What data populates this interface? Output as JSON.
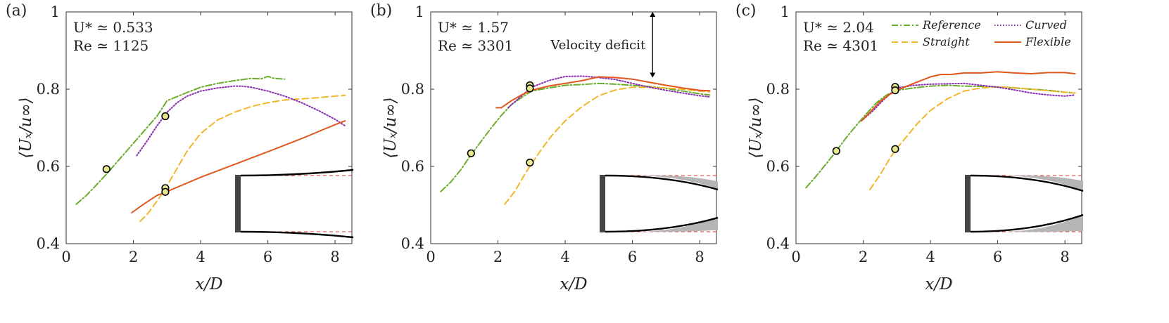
{
  "chart_data": {
    "type": "line",
    "xlabel": "x/D",
    "ylabel": "⟨Uₓ/u∞⟩",
    "xlim": [
      0,
      8.5
    ],
    "ylim": [
      0.4,
      1.0
    ],
    "xticks": [
      "0",
      "2",
      "4",
      "6",
      "8"
    ],
    "yticks": [
      "0.4",
      "0.6",
      "0.8",
      "1"
    ],
    "legend": {
      "placement": "top-right of panel (c)",
      "entries": [
        "Reference",
        "Straight",
        "Curved",
        "Flexible"
      ]
    },
    "colors": {
      "Reference": "#6aad2c",
      "Straight": "#f2b62c",
      "Curved": "#8a2fb0",
      "Flexible": "#e0571e",
      "marker_fill": "#e8e890",
      "inset_dash": "#e53030",
      "envelope": "#b5b5b5"
    },
    "annotation": {
      "panel": 1,
      "text": "Velocity deficit",
      "x": 6.6,
      "y_from": 0.83,
      "y_to": 1.0
    },
    "panels": [
      {
        "label": "(a)",
        "params": {
          "u": "U* ≃ 0.533",
          "re": "Re ≃ 1125"
        },
        "series": [
          {
            "name": "Reference",
            "x": [
              0.3,
              0.6,
              0.9,
              1.2,
              1.5,
              1.8,
              2.1,
              2.4,
              2.7,
              3.0,
              3.5,
              4.0,
              4.5,
              5.0,
              5.5,
              5.8,
              6.0,
              6.2,
              6.5
            ],
            "y": [
              0.502,
              0.525,
              0.552,
              0.58,
              0.61,
              0.64,
              0.67,
              0.7,
              0.73,
              0.77,
              0.788,
              0.805,
              0.815,
              0.822,
              0.828,
              0.827,
              0.833,
              0.828,
              0.826
            ]
          },
          {
            "name": "Straight",
            "x": [
              2.2,
              2.4,
              2.6,
              2.8,
              3.0,
              3.3,
              3.6,
              4.0,
              4.5,
              5.0,
              5.5,
              6.0,
              6.5,
              7.0,
              7.5,
              8.0,
              8.3
            ],
            "y": [
              0.458,
              0.475,
              0.498,
              0.522,
              0.55,
              0.595,
              0.64,
              0.685,
              0.72,
              0.74,
              0.755,
              0.765,
              0.772,
              0.775,
              0.778,
              0.782,
              0.784
            ]
          },
          {
            "name": "Curved",
            "x": [
              2.1,
              2.4,
              2.7,
              3.0,
              3.3,
              3.6,
              4.0,
              4.5,
              5.0,
              5.2,
              5.5,
              6.0,
              6.5,
              7.0,
              7.5,
              8.0,
              8.3
            ],
            "y": [
              0.628,
              0.665,
              0.705,
              0.74,
              0.765,
              0.782,
              0.795,
              0.803,
              0.808,
              0.808,
              0.805,
              0.795,
              0.782,
              0.765,
              0.745,
              0.722,
              0.705
            ]
          },
          {
            "name": "Flexible",
            "x": [
              1.95,
              2.3,
              2.7,
              3.0,
              4.0,
              5.0,
              6.0,
              7.0,
              7.5,
              8.0,
              8.3
            ],
            "y": [
              0.48,
              0.502,
              0.525,
              0.535,
              0.572,
              0.605,
              0.638,
              0.672,
              0.69,
              0.708,
              0.718
            ]
          }
        ],
        "markers": [
          {
            "x": 1.2,
            "y": 0.593,
            "color": "#6aad2c"
          },
          {
            "x": 2.95,
            "y": 0.73,
            "color": "#8a2fb0"
          },
          {
            "x": 2.95,
            "y": 0.544,
            "color": "#f2b62c"
          },
          {
            "x": 2.95,
            "y": 0.534,
            "color": "#e0571e"
          }
        ],
        "inset": {
          "plate": "flexible",
          "envelope": 0.0
        }
      },
      {
        "label": "(b)",
        "params": {
          "u": "U* ≃ 1.57",
          "re": "Re ≃ 3301"
        },
        "series": [
          {
            "name": "Reference",
            "x": [
              0.3,
              0.6,
              0.9,
              1.2,
              1.5,
              1.8,
              2.1,
              2.4,
              2.7,
              3.0,
              3.5,
              4.0,
              4.5,
              5.0,
              5.5,
              6.0,
              6.5,
              7.0,
              7.5,
              8.0,
              8.3
            ],
            "y": [
              0.535,
              0.56,
              0.592,
              0.63,
              0.665,
              0.7,
              0.732,
              0.76,
              0.778,
              0.795,
              0.803,
              0.81,
              0.812,
              0.815,
              0.813,
              0.81,
              0.807,
              0.802,
              0.795,
              0.788,
              0.785
            ]
          },
          {
            "name": "Straight",
            "x": [
              2.2,
              2.5,
              2.8,
              3.0,
              3.3,
              3.6,
              4.0,
              4.5,
              5.0,
              5.5,
              6.0,
              6.5,
              7.0,
              7.5,
              8.0,
              8.3
            ],
            "y": [
              0.502,
              0.535,
              0.58,
              0.607,
              0.645,
              0.68,
              0.718,
              0.755,
              0.783,
              0.798,
              0.805,
              0.805,
              0.803,
              0.8,
              0.795,
              0.793
            ]
          },
          {
            "name": "Curved",
            "x": [
              2.3,
              2.6,
              3.0,
              3.5,
              4.0,
              4.5,
              5.0,
              5.5,
              6.0,
              6.5,
              7.0,
              7.5,
              8.0,
              8.3
            ],
            "y": [
              0.752,
              0.775,
              0.805,
              0.822,
              0.833,
              0.834,
              0.83,
              0.825,
              0.815,
              0.805,
              0.797,
              0.79,
              0.783,
              0.78
            ]
          },
          {
            "name": "Flexible",
            "x": [
              1.95,
              2.1,
              2.4,
              2.7,
              3.0,
              3.5,
              4.0,
              4.5,
              5.0,
              5.5,
              6.0,
              6.5,
              7.0,
              7.5,
              8.0,
              8.3
            ],
            "y": [
              0.752,
              0.752,
              0.77,
              0.785,
              0.797,
              0.808,
              0.815,
              0.822,
              0.832,
              0.83,
              0.826,
              0.818,
              0.81,
              0.803,
              0.797,
              0.796
            ]
          }
        ],
        "markers": [
          {
            "x": 1.2,
            "y": 0.634,
            "color": "#6aad2c"
          },
          {
            "x": 2.95,
            "y": 0.61,
            "color": "#f2b62c"
          },
          {
            "x": 2.95,
            "y": 0.81,
            "color": "#8a2fb0"
          },
          {
            "x": 2.95,
            "y": 0.802,
            "color": "#e0571e"
          }
        ],
        "inset": {
          "plate": "deflected",
          "envelope": 0.5
        }
      },
      {
        "label": "(c)",
        "params": {
          "u": "U* ≃ 2.04",
          "re": "Re ≃ 4301"
        },
        "series": [
          {
            "name": "Reference",
            "x": [
              0.3,
              0.6,
              0.9,
              1.2,
              1.5,
              1.8,
              2.1,
              2.4,
              2.7,
              3.0,
              3.5,
              4.0,
              4.5,
              5.0,
              5.5,
              6.0,
              6.5,
              7.0,
              7.5,
              8.0,
              8.3
            ],
            "y": [
              0.545,
              0.575,
              0.607,
              0.64,
              0.675,
              0.707,
              0.737,
              0.765,
              0.785,
              0.797,
              0.803,
              0.808,
              0.81,
              0.808,
              0.807,
              0.806,
              0.803,
              0.8,
              0.797,
              0.792,
              0.79
            ]
          },
          {
            "name": "Straight",
            "x": [
              2.2,
              2.5,
              2.8,
              3.0,
              3.3,
              3.6,
              4.0,
              4.5,
              5.0,
              5.5,
              6.0,
              6.5,
              7.0,
              7.5,
              8.0,
              8.3
            ],
            "y": [
              0.54,
              0.578,
              0.622,
              0.647,
              0.678,
              0.71,
              0.745,
              0.775,
              0.795,
              0.803,
              0.806,
              0.804,
              0.8,
              0.796,
              0.792,
              0.79
            ]
          },
          {
            "name": "Curved",
            "x": [
              1.95,
              2.3,
              2.6,
              3.0,
              3.5,
              4.0,
              4.5,
              5.0,
              5.5,
              6.0,
              6.5,
              7.0,
              7.5,
              8.0,
              8.3
            ],
            "y": [
              0.718,
              0.745,
              0.772,
              0.803,
              0.81,
              0.813,
              0.814,
              0.815,
              0.81,
              0.805,
              0.798,
              0.79,
              0.785,
              0.782,
              0.785
            ]
          },
          {
            "name": "Flexible",
            "x": [
              1.95,
              2.2,
              2.5,
              2.8,
              3.0,
              3.5,
              4.0,
              4.3,
              4.6,
              5.0,
              5.5,
              6.0,
              6.5,
              7.0,
              7.5,
              8.0,
              8.3
            ],
            "y": [
              0.718,
              0.74,
              0.768,
              0.787,
              0.797,
              0.815,
              0.832,
              0.838,
              0.838,
              0.842,
              0.842,
              0.845,
              0.842,
              0.84,
              0.843,
              0.843,
              0.84
            ]
          }
        ],
        "markers": [
          {
            "x": 1.2,
            "y": 0.64,
            "color": "#6aad2c"
          },
          {
            "x": 2.95,
            "y": 0.645,
            "color": "#f2b62c"
          },
          {
            "x": 2.95,
            "y": 0.806,
            "color": "#8a2fb0"
          },
          {
            "x": 2.95,
            "y": 0.797,
            "color": "#e0571e"
          }
        ],
        "inset": {
          "plate": "deflected",
          "envelope": 1.0
        }
      }
    ]
  }
}
